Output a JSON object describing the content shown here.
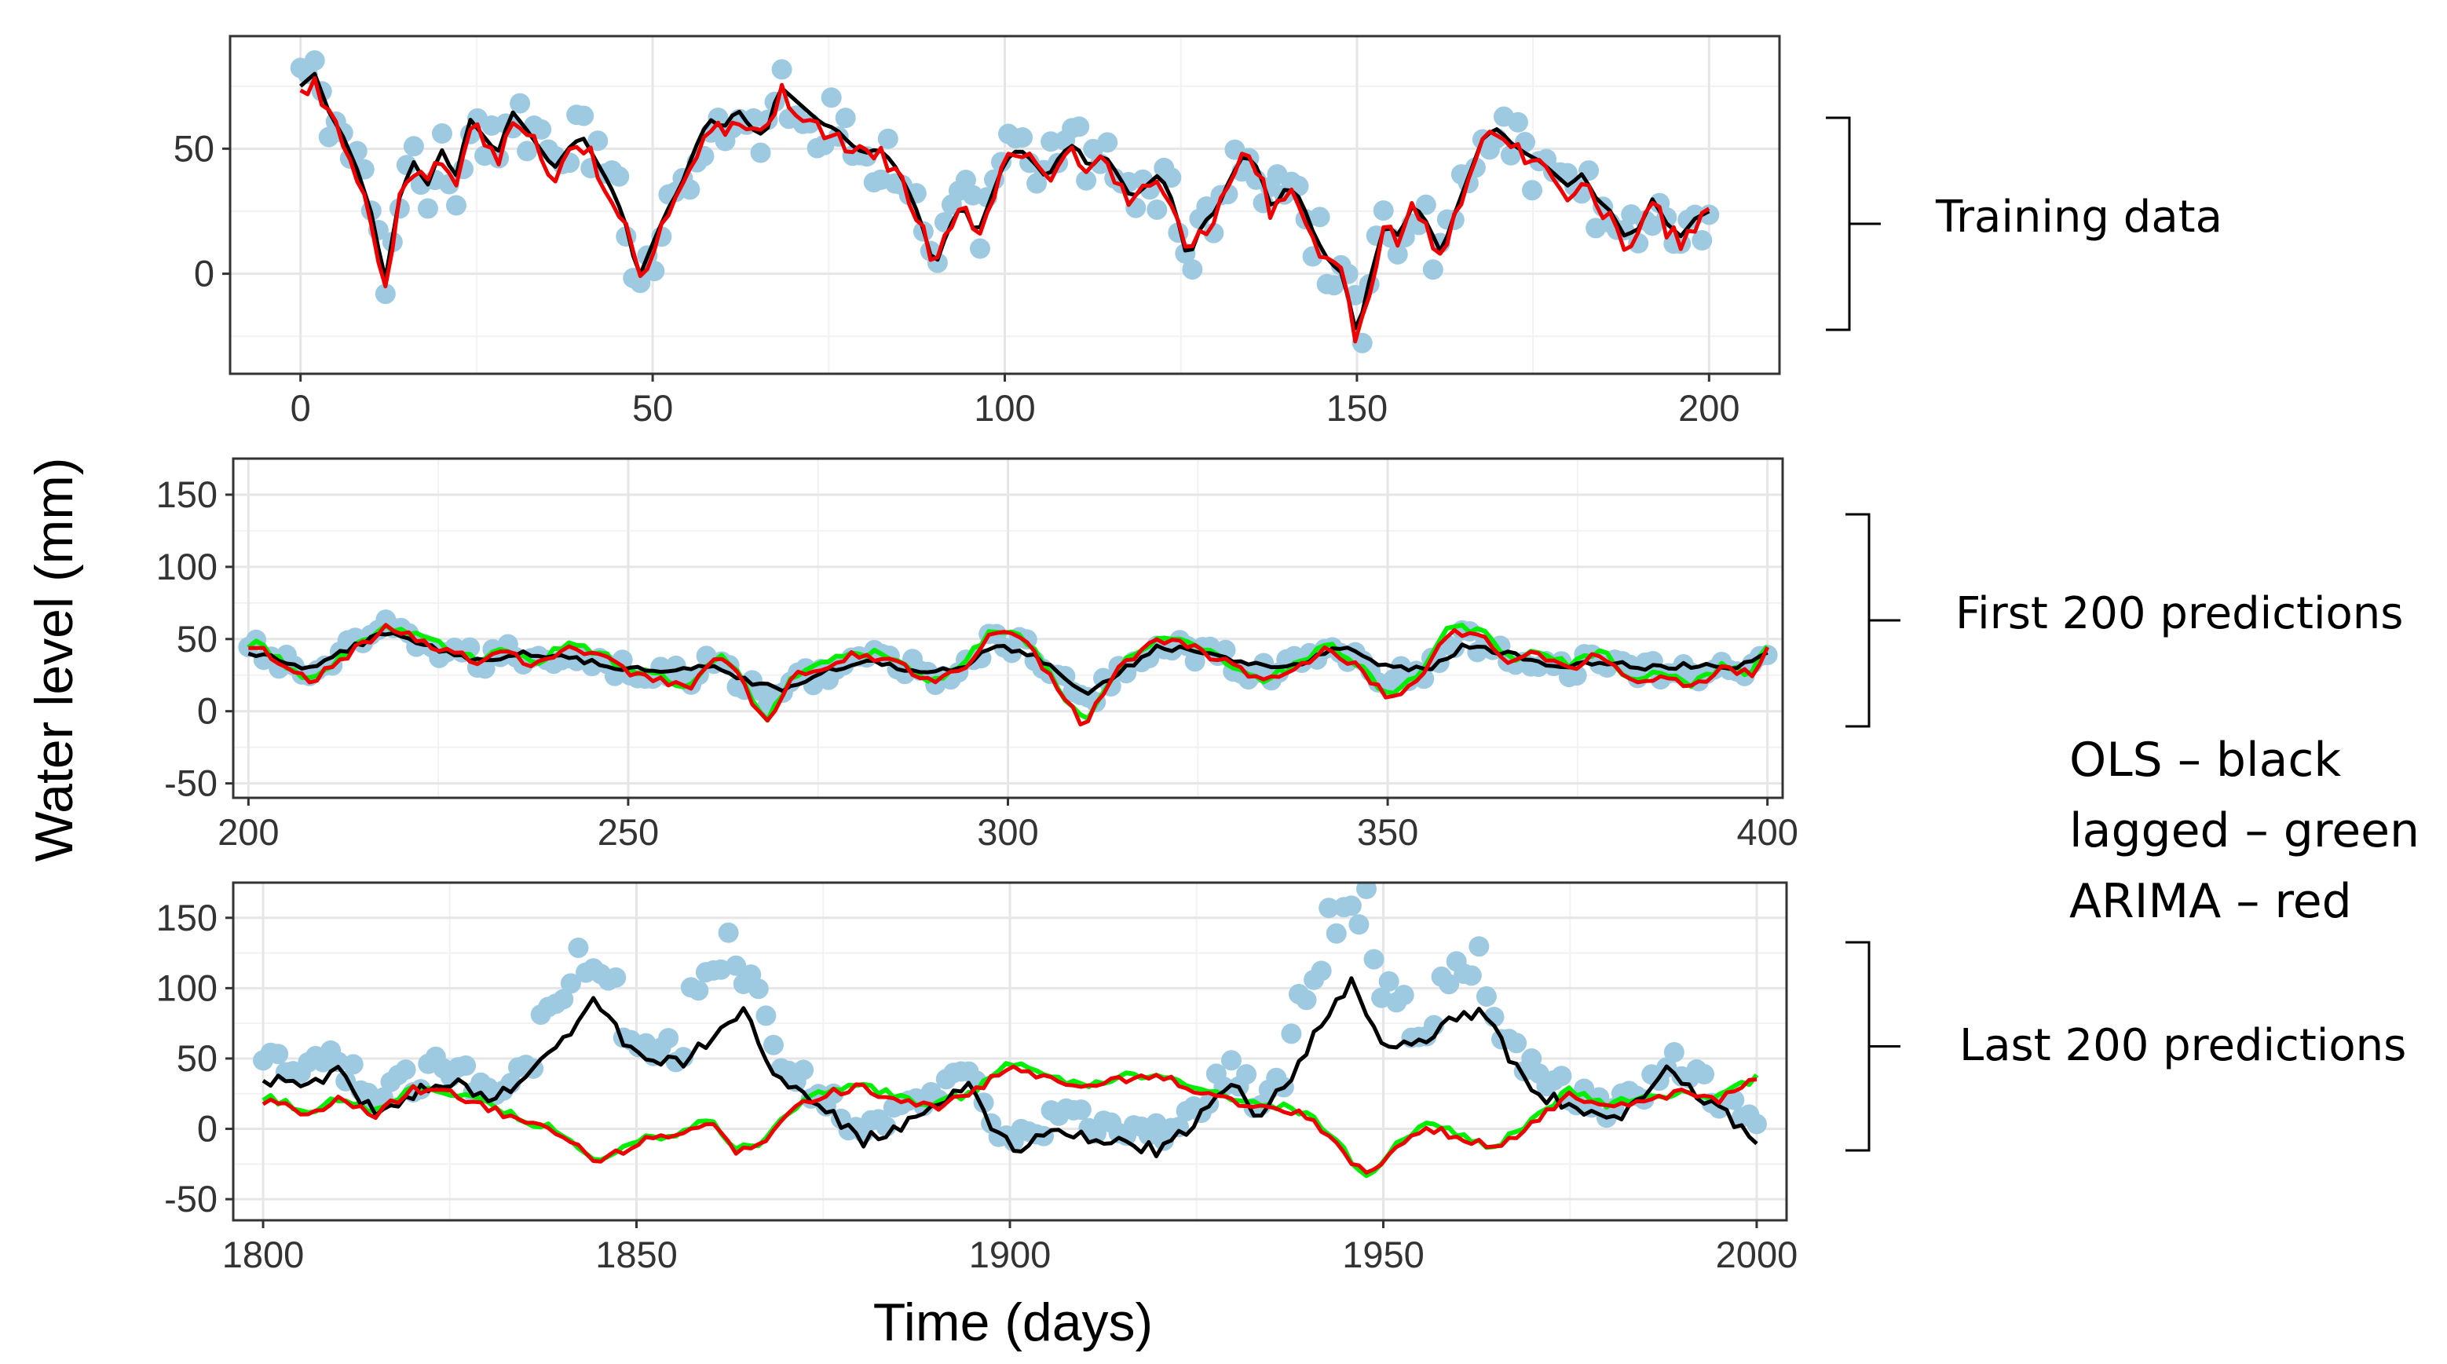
{
  "figure": {
    "ylabel": "Water level (mm)",
    "xlabel": "Time (days)",
    "legend_lines": [
      "OLS – black",
      "lagged – green",
      "ARIMA – red"
    ],
    "colors": {
      "observed": "#9ecae1",
      "OLS": "#000000",
      "lagged": "#00ee00",
      "ARIMA": "#ee0000",
      "grid": "#e6e6e6",
      "panel_border": "#333333"
    }
  },
  "chart_data": [
    {
      "type": "line",
      "panel_label": "Training data",
      "xlim": [
        -10,
        210
      ],
      "ylim": [
        -40,
        95
      ],
      "xticks": [
        0,
        50,
        100,
        150,
        200
      ],
      "xtick_labels": [
        "0",
        "50",
        "100",
        "150",
        "200"
      ],
      "yticks": [
        0,
        50
      ],
      "ytick_labels": [
        "0",
        "50"
      ],
      "show_x_title": false,
      "knots": [
        [
          0,
          75
        ],
        [
          2,
          80
        ],
        [
          4,
          65
        ],
        [
          6,
          55
        ],
        [
          8,
          42
        ],
        [
          10,
          25
        ],
        [
          12,
          -3
        ],
        [
          14,
          30
        ],
        [
          16,
          45
        ],
        [
          18,
          35
        ],
        [
          20,
          50
        ],
        [
          22,
          38
        ],
        [
          24,
          62
        ],
        [
          26,
          55
        ],
        [
          28,
          48
        ],
        [
          30,
          65
        ],
        [
          32,
          58
        ],
        [
          34,
          50
        ],
        [
          36,
          42
        ],
        [
          38,
          50
        ],
        [
          40,
          55
        ],
        [
          42,
          45
        ],
        [
          44,
          35
        ],
        [
          46,
          22
        ],
        [
          48,
          -2
        ],
        [
          50,
          12
        ],
        [
          52,
          25
        ],
        [
          54,
          35
        ],
        [
          56,
          50
        ],
        [
          58,
          62
        ],
        [
          60,
          58
        ],
        [
          62,
          66
        ],
        [
          64,
          58
        ],
        [
          66,
          55
        ],
        [
          68,
          75
        ],
        [
          70,
          70
        ],
        [
          72,
          65
        ],
        [
          74,
          60
        ],
        [
          76,
          58
        ],
        [
          78,
          52
        ],
        [
          80,
          48
        ],
        [
          82,
          50
        ],
        [
          84,
          45
        ],
        [
          86,
          35
        ],
        [
          88,
          22
        ],
        [
          90,
          2
        ],
        [
          92,
          18
        ],
        [
          94,
          28
        ],
        [
          96,
          15
        ],
        [
          98,
          30
        ],
        [
          100,
          45
        ],
        [
          102,
          50
        ],
        [
          104,
          45
        ],
        [
          106,
          38
        ],
        [
          108,
          48
        ],
        [
          110,
          52
        ],
        [
          112,
          42
        ],
        [
          114,
          48
        ],
        [
          116,
          40
        ],
        [
          118,
          30
        ],
        [
          120,
          35
        ],
        [
          122,
          40
        ],
        [
          124,
          28
        ],
        [
          126,
          5
        ],
        [
          128,
          20
        ],
        [
          130,
          25
        ],
        [
          132,
          38
        ],
        [
          134,
          48
        ],
        [
          136,
          42
        ],
        [
          138,
          25
        ],
        [
          140,
          35
        ],
        [
          142,
          30
        ],
        [
          144,
          15
        ],
        [
          146,
          5
        ],
        [
          148,
          0
        ],
        [
          150,
          -25
        ],
        [
          152,
          0
        ],
        [
          154,
          20
        ],
        [
          156,
          15
        ],
        [
          158,
          28
        ],
        [
          160,
          20
        ],
        [
          162,
          8
        ],
        [
          164,
          25
        ],
        [
          166,
          40
        ],
        [
          168,
          55
        ],
        [
          170,
          58
        ],
        [
          172,
          52
        ],
        [
          174,
          48
        ],
        [
          176,
          45
        ],
        [
          178,
          40
        ],
        [
          180,
          35
        ],
        [
          182,
          40
        ],
        [
          184,
          30
        ],
        [
          186,
          25
        ],
        [
          188,
          15
        ],
        [
          190,
          18
        ],
        [
          192,
          30
        ],
        [
          194,
          20
        ],
        [
          196,
          15
        ],
        [
          198,
          22
        ],
        [
          200,
          25
        ]
      ],
      "noise": {
        "OLS": 0,
        "lagged": 3,
        "ARIMA": 4,
        "observed": 10
      },
      "offset": {
        "OLS": 0,
        "lagged": -2,
        "ARIMA": -2
      },
      "n_points": 200
    },
    {
      "type": "line",
      "panel_label": "First 200 predictions",
      "xlim": [
        198,
        402
      ],
      "ylim": [
        -60,
        175
      ],
      "xticks": [
        200,
        250,
        300,
        350,
        400
      ],
      "xtick_labels": [
        "200",
        "250",
        "300",
        "350",
        "400"
      ],
      "yticks": [
        -50,
        0,
        50,
        100,
        150
      ],
      "ytick_labels": [
        "-50",
        "0",
        "50",
        "100",
        "150"
      ],
      "show_x_title": false,
      "knots": [
        [
          201,
          45
        ],
        [
          205,
          30
        ],
        [
          208,
          20
        ],
        [
          212,
          35
        ],
        [
          216,
          50
        ],
        [
          218,
          58
        ],
        [
          222,
          50
        ],
        [
          226,
          42
        ],
        [
          230,
          35
        ],
        [
          234,
          40
        ],
        [
          238,
          32
        ],
        [
          242,
          45
        ],
        [
          246,
          38
        ],
        [
          250,
          28
        ],
        [
          254,
          22
        ],
        [
          258,
          15
        ],
        [
          262,
          40
        ],
        [
          265,
          20
        ],
        [
          268,
          -10
        ],
        [
          272,
          25
        ],
        [
          276,
          30
        ],
        [
          280,
          40
        ],
        [
          285,
          35
        ],
        [
          290,
          20
        ],
        [
          294,
          30
        ],
        [
          298,
          55
        ],
        [
          302,
          50
        ],
        [
          306,
          20
        ],
        [
          310,
          -10
        ],
        [
          314,
          25
        ],
        [
          318,
          45
        ],
        [
          322,
          50
        ],
        [
          326,
          40
        ],
        [
          330,
          30
        ],
        [
          334,
          20
        ],
        [
          338,
          30
        ],
        [
          342,
          45
        ],
        [
          346,
          30
        ],
        [
          350,
          10
        ],
        [
          354,
          20
        ],
        [
          358,
          55
        ],
        [
          362,
          55
        ],
        [
          366,
          35
        ],
        [
          370,
          40
        ],
        [
          374,
          30
        ],
        [
          378,
          40
        ],
        [
          382,
          20
        ],
        [
          386,
          25
        ],
        [
          390,
          15
        ],
        [
          394,
          30
        ],
        [
          398,
          25
        ],
        [
          400,
          45
        ]
      ],
      "ols_knots": [
        [
          201,
          40
        ],
        [
          208,
          30
        ],
        [
          214,
          45
        ],
        [
          218,
          55
        ],
        [
          224,
          45
        ],
        [
          230,
          35
        ],
        [
          236,
          40
        ],
        [
          242,
          38
        ],
        [
          248,
          30
        ],
        [
          254,
          28
        ],
        [
          260,
          32
        ],
        [
          266,
          20
        ],
        [
          270,
          15
        ],
        [
          276,
          28
        ],
        [
          282,
          35
        ],
        [
          288,
          28
        ],
        [
          294,
          30
        ],
        [
          298,
          45
        ],
        [
          302,
          42
        ],
        [
          306,
          30
        ],
        [
          310,
          12
        ],
        [
          314,
          25
        ],
        [
          320,
          45
        ],
        [
          326,
          40
        ],
        [
          332,
          32
        ],
        [
          338,
          32
        ],
        [
          344,
          45
        ],
        [
          350,
          30
        ],
        [
          356,
          30
        ],
        [
          360,
          45
        ],
        [
          366,
          40
        ],
        [
          372,
          30
        ],
        [
          378,
          35
        ],
        [
          384,
          30
        ],
        [
          390,
          32
        ],
        [
          396,
          30
        ],
        [
          400,
          40
        ]
      ],
      "noise": {
        "OLS": 2,
        "lagged": 3,
        "ARIMA": 3,
        "observed": 8
      },
      "offset": {
        "OLS": 0,
        "lagged": 2,
        "ARIMA": 0
      },
      "n_points": 200
    },
    {
      "type": "line",
      "panel_label": "Last 200 predictions",
      "xlim": [
        1796,
        2004
      ],
      "ylim": [
        -65,
        175
      ],
      "xticks": [
        1800,
        1850,
        1900,
        1950,
        2000
      ],
      "xtick_labels": [
        "1800",
        "1850",
        "1900",
        "1950",
        "2000"
      ],
      "yticks": [
        -50,
        0,
        50,
        100,
        150
      ],
      "ytick_labels": [
        "-50",
        "0",
        "50",
        "100",
        "150"
      ],
      "show_x_title": true,
      "knots": [
        [
          1801,
          20
        ],
        [
          1806,
          10
        ],
        [
          1810,
          20
        ],
        [
          1815,
          10
        ],
        [
          1820,
          28
        ],
        [
          1825,
          25
        ],
        [
          1830,
          15
        ],
        [
          1835,
          5
        ],
        [
          1840,
          -5
        ],
        [
          1845,
          -25
        ],
        [
          1850,
          -10
        ],
        [
          1855,
          -5
        ],
        [
          1860,
          5
        ],
        [
          1863,
          -15
        ],
        [
          1866,
          -15
        ],
        [
          1870,
          10
        ],
        [
          1875,
          25
        ],
        [
          1880,
          30
        ],
        [
          1885,
          20
        ],
        [
          1890,
          15
        ],
        [
          1895,
          25
        ],
        [
          1900,
          45
        ],
        [
          1905,
          35
        ],
        [
          1910,
          30
        ],
        [
          1915,
          35
        ],
        [
          1920,
          38
        ],
        [
          1925,
          28
        ],
        [
          1930,
          20
        ],
        [
          1935,
          15
        ],
        [
          1940,
          10
        ],
        [
          1945,
          -20
        ],
        [
          1948,
          -35
        ],
        [
          1952,
          -10
        ],
        [
          1956,
          0
        ],
        [
          1960,
          -5
        ],
        [
          1965,
          -15
        ],
        [
          1970,
          5
        ],
        [
          1975,
          25
        ],
        [
          1980,
          15
        ],
        [
          1985,
          20
        ],
        [
          1990,
          25
        ],
        [
          1995,
          20
        ],
        [
          2000,
          35
        ]
      ],
      "ols_knots": [
        [
          1801,
          35
        ],
        [
          1805,
          30
        ],
        [
          1810,
          40
        ],
        [
          1815,
          10
        ],
        [
          1820,
          25
        ],
        [
          1825,
          35
        ],
        [
          1830,
          20
        ],
        [
          1835,
          35
        ],
        [
          1840,
          60
        ],
        [
          1844,
          90
        ],
        [
          1848,
          65
        ],
        [
          1852,
          50
        ],
        [
          1856,
          45
        ],
        [
          1860,
          65
        ],
        [
          1864,
          85
        ],
        [
          1868,
          45
        ],
        [
          1872,
          25
        ],
        [
          1876,
          10
        ],
        [
          1880,
          -10
        ],
        [
          1885,
          0
        ],
        [
          1890,
          15
        ],
        [
          1895,
          35
        ],
        [
          1898,
          -5
        ],
        [
          1902,
          -15
        ],
        [
          1906,
          0
        ],
        [
          1910,
          -5
        ],
        [
          1915,
          -10
        ],
        [
          1920,
          -15
        ],
        [
          1925,
          5
        ],
        [
          1930,
          35
        ],
        [
          1933,
          10
        ],
        [
          1937,
          30
        ],
        [
          1940,
          60
        ],
        [
          1944,
          90
        ],
        [
          1946,
          108
        ],
        [
          1950,
          55
        ],
        [
          1955,
          60
        ],
        [
          1960,
          80
        ],
        [
          1963,
          85
        ],
        [
          1967,
          50
        ],
        [
          1971,
          25
        ],
        [
          1975,
          15
        ],
        [
          1980,
          5
        ],
        [
          1985,
          20
        ],
        [
          1988,
          40
        ],
        [
          1992,
          25
        ],
        [
          1996,
          10
        ],
        [
          2000,
          -10
        ]
      ],
      "obs_shift": [
        [
          1840,
          20
        ],
        [
          1845,
          25
        ],
        [
          1860,
          30
        ],
        [
          1865,
          20
        ],
        [
          1940,
          30
        ],
        [
          1945,
          45
        ],
        [
          1950,
          30
        ],
        [
          1960,
          25
        ]
      ],
      "noise": {
        "OLS": 5,
        "lagged": 3,
        "ARIMA": 3,
        "observed": 10
      },
      "offset": {
        "OLS": 0,
        "lagged": 2,
        "ARIMA": 0
      },
      "n_points": 200
    }
  ]
}
